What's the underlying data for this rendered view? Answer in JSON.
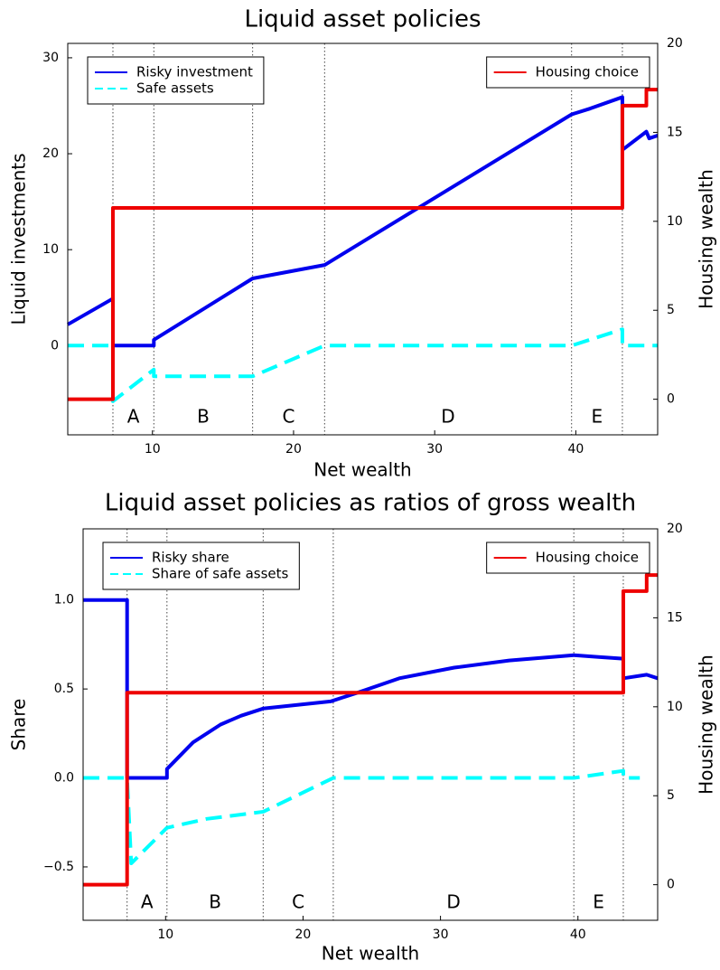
{
  "chart_data": [
    {
      "type": "line",
      "title": "Liquid asset policies",
      "x_label": "Net wealth",
      "y_label": "Liquid investments",
      "y2_label": "Housing wealth",
      "xlim": [
        4,
        45.8
      ],
      "xticks": [
        10,
        20,
        30,
        40
      ],
      "ylim": [
        -9.3,
        31.5
      ],
      "yticks": [
        0,
        10,
        20,
        30
      ],
      "y2lim": [
        -2,
        20
      ],
      "y2ticks": [
        0,
        5,
        10,
        15,
        20
      ],
      "grid": false,
      "legend": "top left",
      "legend2": "top right",
      "vlines": [
        7.2,
        10.1,
        17.1,
        22.2,
        39.7,
        43.3
      ],
      "region_labels": [
        "A",
        "B",
        "C",
        "D",
        "E"
      ],
      "series": [
        {
          "name": "Risky investment",
          "color": "#0000ee",
          "dash": false,
          "axis": "y",
          "x": [
            4,
            7.2,
            7.2,
            10.1,
            10.1,
            17.1,
            22.2,
            39.7,
            41,
            43.3,
            43.3,
            45,
            45.2,
            45.8
          ],
          "values": [
            2.2,
            4.9,
            0,
            0,
            0.6,
            7.0,
            8.4,
            24.1,
            24.7,
            25.9,
            20.4,
            22.3,
            21.6,
            21.9
          ]
        },
        {
          "name": "Safe assets",
          "color": "#00ffff",
          "dash": true,
          "axis": "y",
          "x": [
            4,
            7.2,
            7.2,
            10.1,
            10.1,
            17.1,
            22.2,
            39.7,
            43.3,
            43.3,
            45.8
          ],
          "values": [
            0,
            0,
            -5.8,
            -2.5,
            -3.2,
            -3.2,
            0,
            0,
            1.7,
            0,
            0
          ]
        },
        {
          "name": "Housing choice",
          "color": "#ee0000",
          "dash": false,
          "axis": "y2",
          "x": [
            4,
            7.2,
            7.2,
            43.3,
            43.3,
            45,
            45,
            45.8
          ],
          "values": [
            0,
            0,
            10.75,
            10.75,
            16.5,
            16.5,
            17.4,
            17.4
          ]
        }
      ]
    },
    {
      "type": "line",
      "title": "Liquid asset policies as ratios of gross wealth",
      "x_label": "Net wealth",
      "y_label": "Share",
      "y2_label": "Housing wealth",
      "xlim": [
        4,
        45.8
      ],
      "xticks": [
        10,
        20,
        30,
        40
      ],
      "ylim": [
        -0.8,
        1.4
      ],
      "yticks": [
        {
          "value": -0.5,
          "label": "−0.5"
        },
        {
          "value": 0,
          "label": "0.0"
        },
        0.5,
        {
          "value": 1,
          "label": "1.0"
        }
      ],
      "y2lim": [
        -2,
        20
      ],
      "y2ticks": [
        0,
        5,
        10,
        15,
        20
      ],
      "grid": false,
      "legend": "top left",
      "legend2": "top right",
      "vlines": [
        7.2,
        10.1,
        17.1,
        22.2,
        39.7,
        43.3
      ],
      "region_labels": [
        "A",
        "B",
        "C",
        "D",
        "E"
      ],
      "series": [
        {
          "name": "Risky share",
          "color": "#0000ee",
          "dash": false,
          "axis": "y",
          "x": [
            4,
            7.2,
            7.2,
            10.1,
            10.1,
            12,
            14,
            15.5,
            17.1,
            22,
            24,
            27,
            31,
            35,
            39.7,
            41.5,
            43.3,
            43.3,
            45,
            45.8
          ],
          "values": [
            1.0,
            1.0,
            0,
            0,
            0.05,
            0.2,
            0.3,
            0.35,
            0.39,
            0.43,
            0.48,
            0.56,
            0.62,
            0.66,
            0.69,
            0.68,
            0.67,
            0.56,
            0.58,
            0.56
          ]
        },
        {
          "name": "Share of safe assets",
          "color": "#00ffff",
          "dash": true,
          "axis": "y",
          "x": [
            4,
            7.2,
            7.5,
            10.1,
            13,
            17.1,
            22.2,
            39.7,
            43.3,
            43.3,
            44.5
          ],
          "values": [
            0,
            0,
            -0.48,
            -0.28,
            -0.23,
            -0.19,
            0,
            0,
            0.04,
            0,
            0
          ]
        },
        {
          "name": "Housing choice",
          "color": "#ee0000",
          "dash": false,
          "axis": "y2",
          "x": [
            4,
            7.2,
            7.2,
            43.3,
            43.3,
            45,
            45,
            45.8
          ],
          "values": [
            0,
            0,
            10.79,
            10.79,
            16.5,
            16.5,
            17.4,
            17.4
          ]
        }
      ]
    }
  ]
}
